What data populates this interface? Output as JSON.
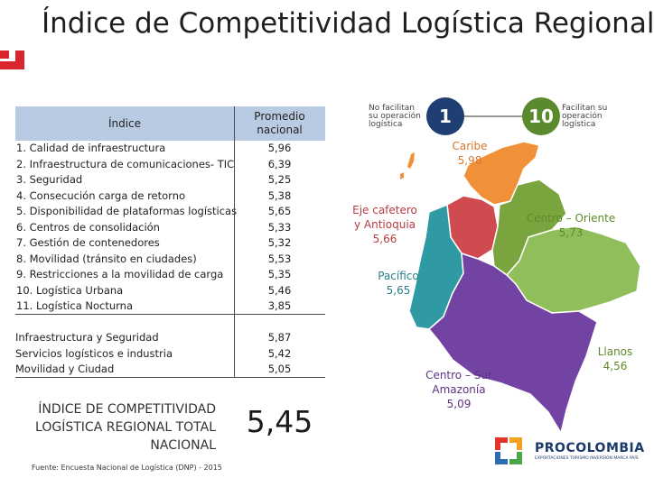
{
  "title": "Índice de Competitividad Logística Regional",
  "table": {
    "header_index": "Índice",
    "header_avg": "Promedio nacional",
    "rows": [
      {
        "label": "1. Calidad de infraestructura",
        "value": "5,96"
      },
      {
        "label": "2. Infraestructura de comunicaciones- TIC",
        "value": "6,39"
      },
      {
        "label": "3. Seguridad",
        "value": "5,25"
      },
      {
        "label": "4. Consecución carga de retorno",
        "value": "5,38"
      },
      {
        "label": "5. Disponibilidad de plataformas logísticas",
        "value": "5,65"
      },
      {
        "label": "6. Centros de consolidación",
        "value": "5,33"
      },
      {
        "label": "7. Gestión de contenedores",
        "value": "5,32"
      },
      {
        "label": "8. Movilidad (tránsito en ciudades)",
        "value": "5,53"
      },
      {
        "label": "9. Restricciones a la movilidad de carga",
        "value": "5,35"
      },
      {
        "label": "10. Logística Urbana",
        "value": "5,46"
      },
      {
        "label": "11. Logística Nocturna",
        "value": "3,85"
      }
    ],
    "summary": [
      {
        "label": "Infraestructura y Seguridad",
        "value": "5,87"
      },
      {
        "label": "Servicios logísticos e industria",
        "value": "5,42"
      },
      {
        "label": "Movilidad y Ciudad",
        "value": "5,05"
      }
    ],
    "total_label": "ÍNDICE DE COMPETITIVIDAD LOGÍSTICA REGIONAL TOTAL NACIONAL",
    "total_value": "5,45"
  },
  "source": "Fuente: Encuesta Nacional de Logística (DNP) - 2015",
  "scale": {
    "low_label": "No facilitan su operación logística",
    "low_value": "1",
    "low_color": "#1f3f73",
    "high_label": "Facilitan su operación logística",
    "high_value": "10",
    "high_color": "#5b8a2e"
  },
  "regions": [
    {
      "name": "Caribe",
      "value": "5,98",
      "color": "#f0913a"
    },
    {
      "name": "Eje cafetero y Antioquia",
      "value": "5,66",
      "color": "#cf4b50"
    },
    {
      "name": "Centro – Oriente",
      "value": "5,73",
      "color": "#7aa43d"
    },
    {
      "name": "Pacífico",
      "value": "5,65",
      "color": "#2f9aa4"
    },
    {
      "name": "Centro – Sur Amazonía",
      "value": "5,09",
      "color": "#7343a3"
    },
    {
      "name": "Llanos",
      "value": "4,56",
      "color": "#8fbe5a"
    }
  ],
  "logo": {
    "name": "PROCOLOMBIA",
    "tagline": "EXPORTACIONES TURISMO INVERSIÓN MARCA PAÍS"
  }
}
